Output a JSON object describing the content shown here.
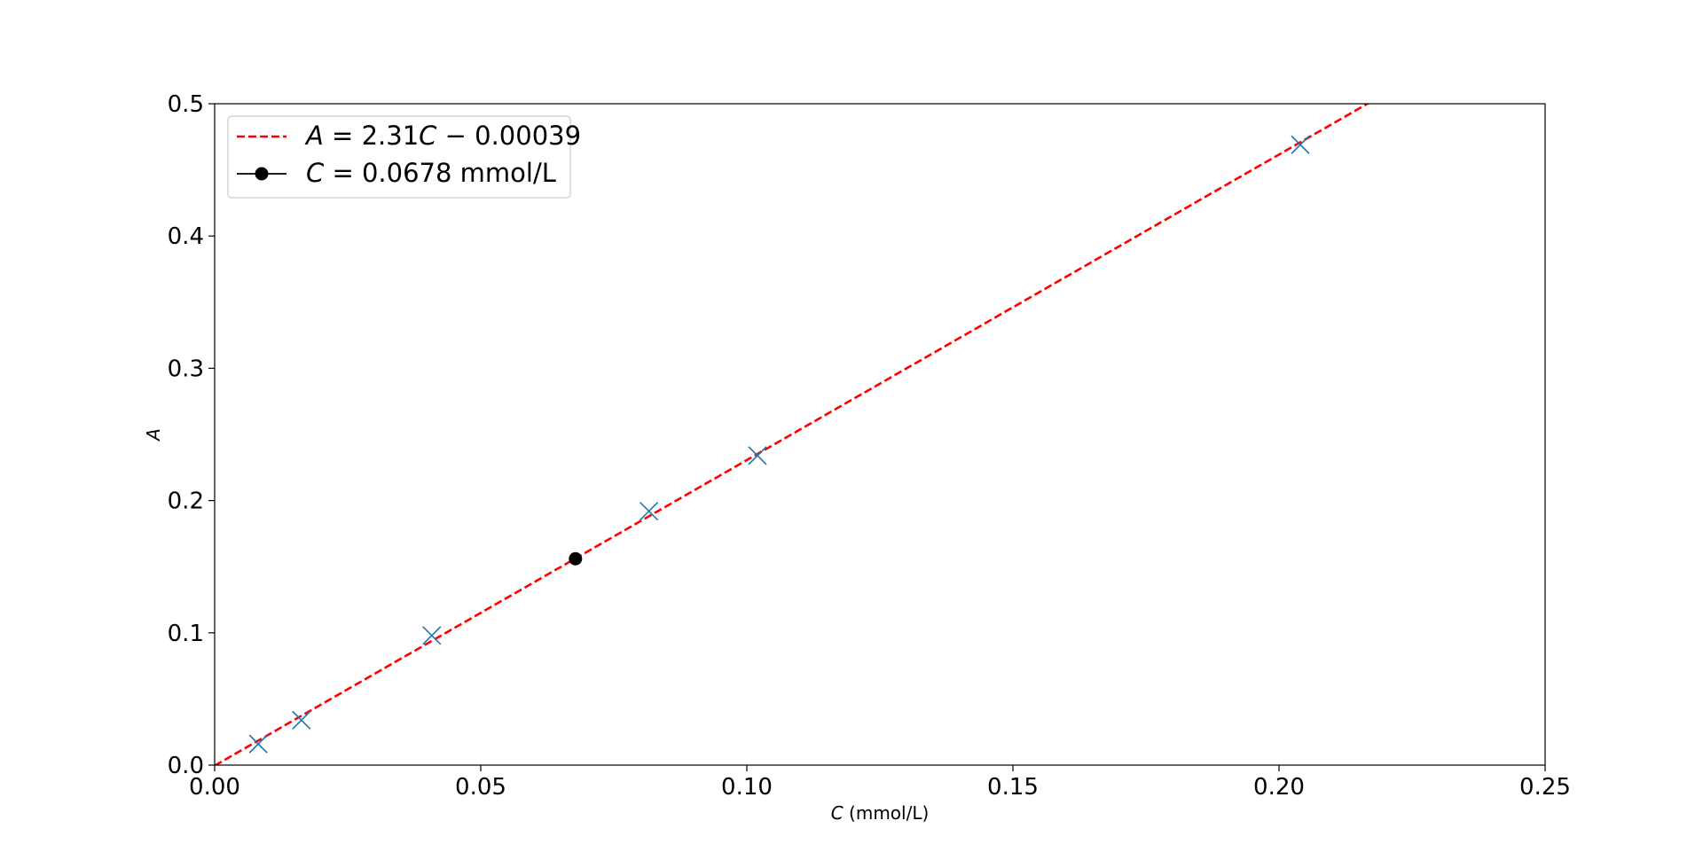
{
  "chart_data": {
    "type": "scatter",
    "xlabel": {
      "var": "C",
      "rest": " (mmol/L)"
    },
    "ylabel": "A",
    "xlim": [
      0,
      0.25
    ],
    "ylim": [
      0,
      0.5
    ],
    "xticks": [
      0.0,
      0.05,
      0.1,
      0.15,
      0.2,
      0.25
    ],
    "xtick_labels": [
      "0.00",
      "0.05",
      "0.10",
      "0.15",
      "0.20",
      "0.25"
    ],
    "yticks": [
      0.0,
      0.1,
      0.2,
      0.3,
      0.4,
      0.5
    ],
    "ytick_labels": [
      "0.0",
      "0.1",
      "0.2",
      "0.3",
      "0.4",
      "0.5"
    ],
    "grid": false,
    "legend_position": "upper-left",
    "series": [
      {
        "kind": "scatter",
        "marker": "x",
        "color": "#1f77b4",
        "points": [
          {
            "x": 0.0082,
            "y": 0.016
          },
          {
            "x": 0.0163,
            "y": 0.034
          },
          {
            "x": 0.0408,
            "y": 0.098
          },
          {
            "x": 0.0816,
            "y": 0.192
          },
          {
            "x": 0.102,
            "y": 0.234
          },
          {
            "x": 0.204,
            "y": 0.469
          }
        ]
      },
      {
        "kind": "line",
        "style": "dashed",
        "color": "#ff0000",
        "slope": 2.31,
        "intercept": -0.00039,
        "x_range": [
          0,
          0.25
        ],
        "legend": {
          "lhs": "A",
          "eq": " = 2.31",
          "var": "C",
          "rest": " − 0.00039"
        }
      },
      {
        "kind": "point",
        "marker": "o",
        "color": "#000000",
        "points": [
          {
            "x": 0.0678,
            "y": 0.156
          }
        ],
        "legend": {
          "var": "C",
          "rest": " = 0.0678 mmol/L"
        }
      }
    ]
  }
}
